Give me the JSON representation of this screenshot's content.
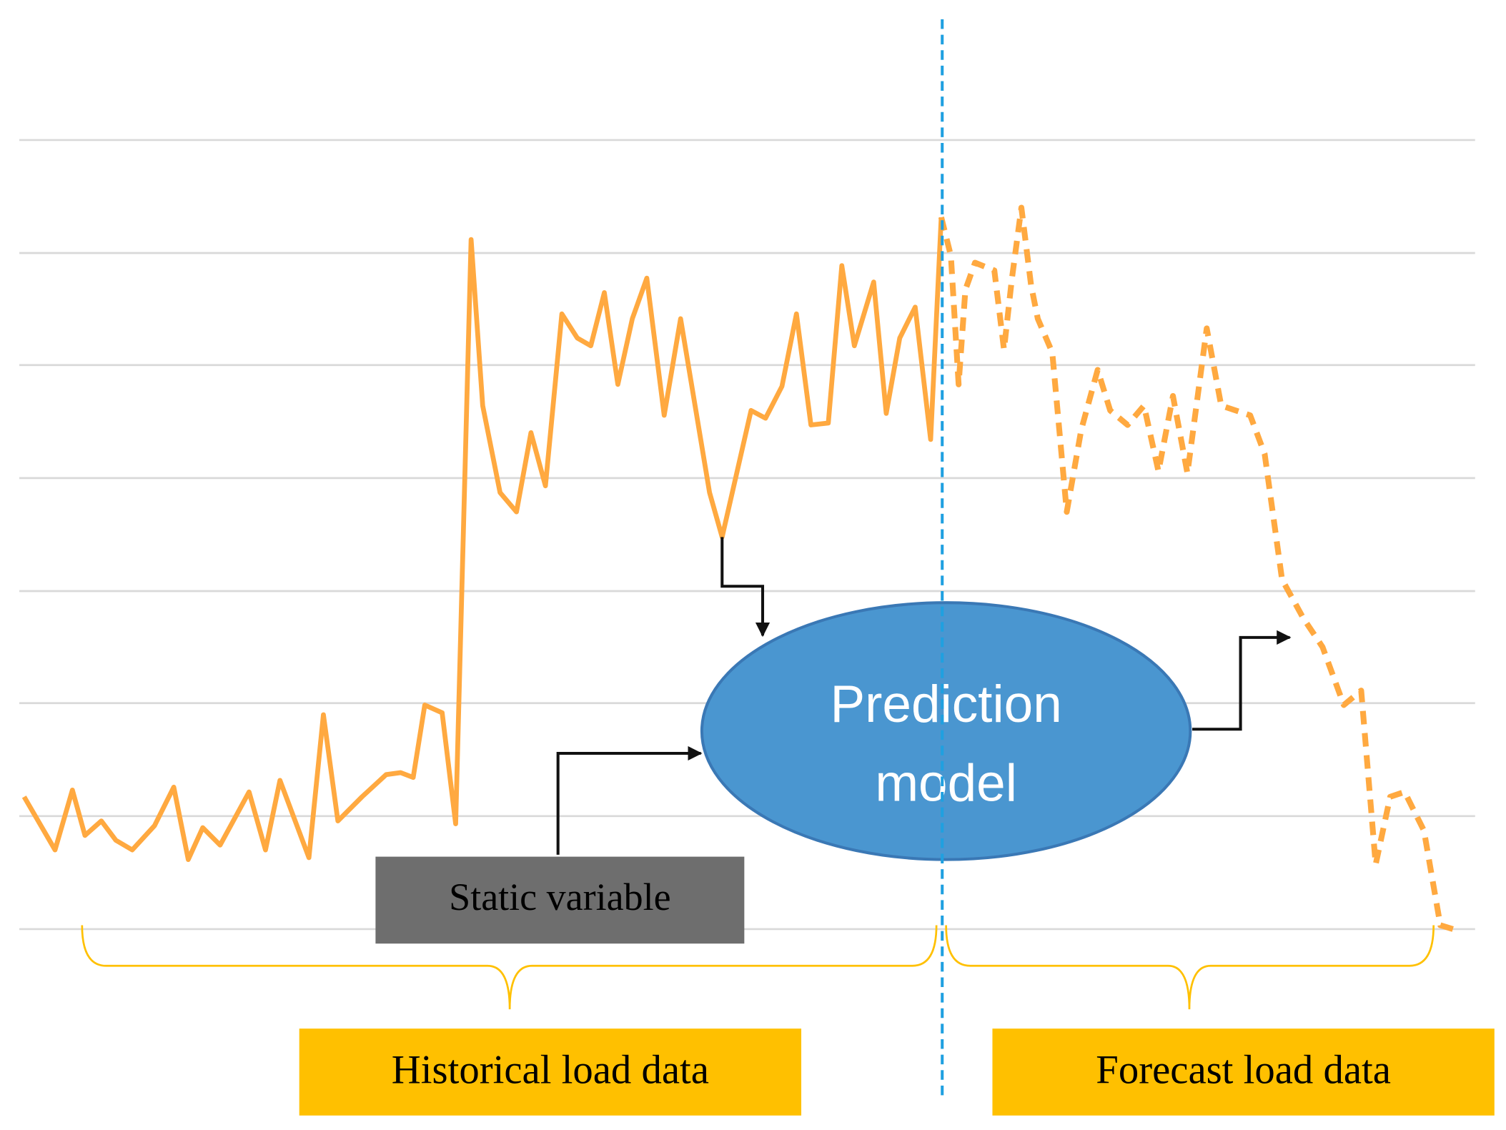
{
  "model": {
    "label_lines": [
      "Prediction",
      "model"
    ]
  },
  "static_variable": "Static variable",
  "segments": {
    "historical": "Historical load data",
    "forecast": "Forecast load data"
  }
}
